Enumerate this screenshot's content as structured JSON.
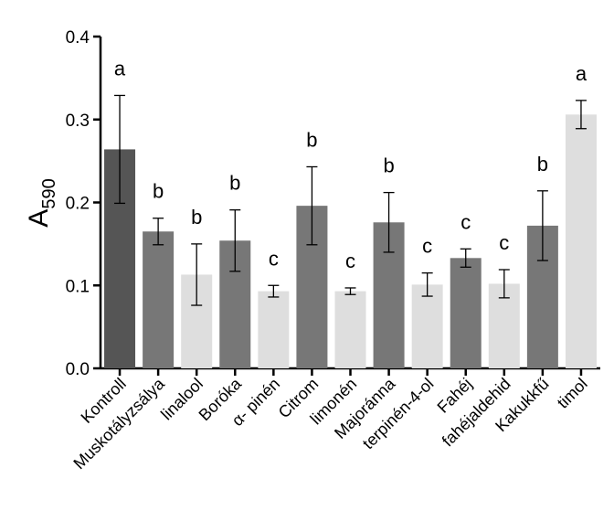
{
  "chart_data": {
    "type": "bar",
    "title": "",
    "xlabel": "",
    "ylabel": "A",
    "ylabel_subscript": "590",
    "ylim": [
      0,
      0.4
    ],
    "yticks": [
      "0.0",
      "0.1",
      "0.2",
      "0.3",
      "0.4"
    ],
    "ytick_values": [
      0,
      0.1,
      0.2,
      0.3,
      0.4
    ],
    "grid": false,
    "categories": [
      "Kontroll",
      "Muskotályzsálya",
      "linalool",
      "Boróka",
      "α- pinén",
      "Citrom",
      "limonén",
      "Majoránna",
      "terpinén-4-ol",
      "Fahéj",
      "fahéjaldehid",
      "Kakukkfű",
      "timol"
    ],
    "values": [
      0.264,
      0.165,
      0.113,
      0.154,
      0.093,
      0.196,
      0.093,
      0.176,
      0.101,
      0.133,
      0.102,
      0.172,
      0.306
    ],
    "errors": [
      0.065,
      0.016,
      0.037,
      0.037,
      0.007,
      0.047,
      0.004,
      0.036,
      0.014,
      0.011,
      0.017,
      0.042,
      0.017
    ],
    "significance": [
      "a",
      "b",
      "b",
      "b",
      "c",
      "b",
      "c",
      "b",
      "c",
      "c",
      "c",
      "b",
      "a"
    ],
    "colors": [
      "#555555",
      "#777777",
      "#dedede",
      "#777777",
      "#dedede",
      "#777777",
      "#dedede",
      "#777777",
      "#dedede",
      "#777777",
      "#dedede",
      "#777777",
      "#dedede"
    ]
  }
}
